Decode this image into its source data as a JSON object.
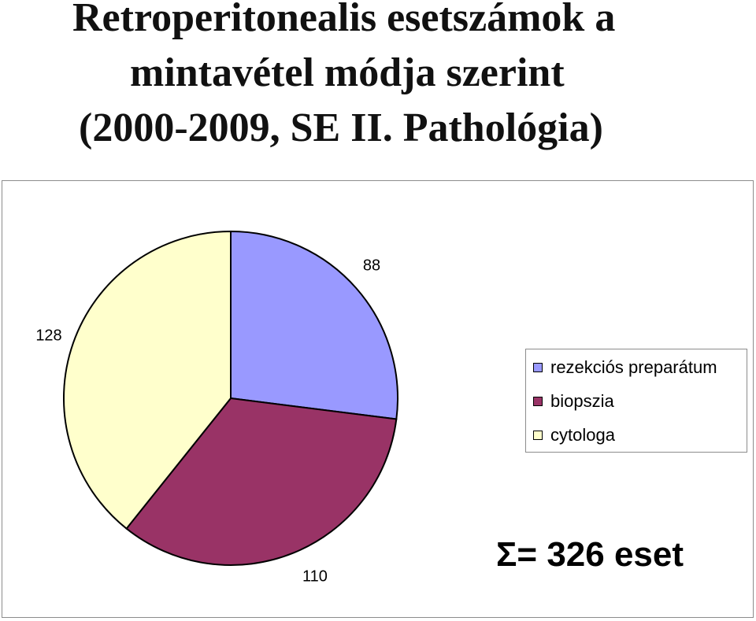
{
  "title_lines": [
    "Retroperitonealis esetszámok a",
    "mintavétel módja szerint",
    "(2000-2009, SE II. Pathológia)"
  ],
  "chart_data": {
    "type": "pie",
    "title": "Retroperitonealis esetszámok a mintavétel módja szerint (2000-2009, SE II. Pathológia)",
    "categories": [
      "rezekciós preparátum",
      "biopszia",
      "cytologa"
    ],
    "values": [
      88,
      110,
      128
    ],
    "data_labels": [
      "88",
      "110",
      "128"
    ],
    "colors": [
      "#9999ff",
      "#993366",
      "#ffffcc"
    ],
    "legend_placement": "right",
    "start_angle": "top, clockwise"
  },
  "legend": {
    "items": [
      {
        "label": "rezekciós preparátum",
        "color": "#9999ff"
      },
      {
        "label": "biopszia",
        "color": "#993366"
      },
      {
        "label": "cytologa",
        "color": "#ffffcc"
      }
    ]
  },
  "total_note": "Σ= 326 eset"
}
